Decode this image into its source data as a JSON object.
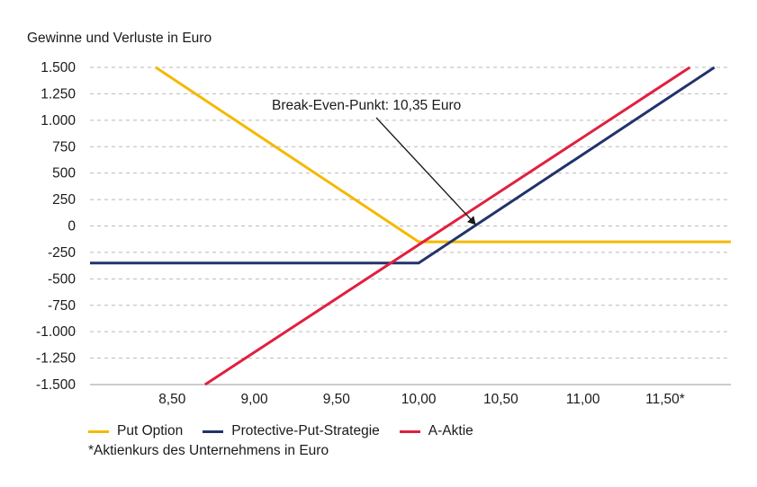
{
  "chart_data": {
    "type": "line",
    "title": "",
    "ylabel": "Gewinne und Verluste in Euro",
    "xlabel": "",
    "footnote": "*Aktienkurs des Unternehmens in Euro",
    "xlim": [
      8.0,
      11.9
    ],
    "ylim": [
      -1500,
      1500
    ],
    "x_ticks": [
      {
        "value": 8.5,
        "label": "8,50"
      },
      {
        "value": 9.0,
        "label": "9,00"
      },
      {
        "value": 9.5,
        "label": "9,50"
      },
      {
        "value": 10.0,
        "label": "10,00"
      },
      {
        "value": 10.5,
        "label": "10,50"
      },
      {
        "value": 11.0,
        "label": "11,00"
      },
      {
        "value": 11.5,
        "label": "11,50*"
      }
    ],
    "y_ticks": [
      {
        "value": 1500,
        "label": "1.500"
      },
      {
        "value": 1250,
        "label": "1.250"
      },
      {
        "value": 1000,
        "label": "1.000"
      },
      {
        "value": 750,
        "label": "750"
      },
      {
        "value": 500,
        "label": "500"
      },
      {
        "value": 250,
        "label": "250"
      },
      {
        "value": 0,
        "label": "0"
      },
      {
        "value": -250,
        "label": "-250"
      },
      {
        "value": -500,
        "label": "-500"
      },
      {
        "value": -750,
        "label": "-750"
      },
      {
        "value": -1000,
        "label": "-1.000"
      },
      {
        "value": -1250,
        "label": "-1.250"
      },
      {
        "value": -1500,
        "label": "-1.500"
      }
    ],
    "grid": "horizontal-dashed",
    "legend_position": "bottom",
    "series": [
      {
        "name": "Put Option",
        "color": "#F5B800",
        "points": [
          [
            8.4,
            1500
          ],
          [
            10.0,
            -150
          ],
          [
            11.9,
            -150
          ]
        ]
      },
      {
        "name": "Protective-Put-Strategie",
        "color": "#22336B",
        "points": [
          [
            8.0,
            -350
          ],
          [
            10.0,
            -350
          ],
          [
            11.8,
            1500
          ]
        ]
      },
      {
        "name": "A-Aktie",
        "color": "#E0203F",
        "points": [
          [
            8.7,
            -1500
          ],
          [
            11.65,
            1500
          ]
        ]
      }
    ],
    "annotations": [
      {
        "text": "Break-Even-Punkt: 10,35 Euro",
        "target_x": 10.35,
        "target_y": 0
      }
    ]
  }
}
